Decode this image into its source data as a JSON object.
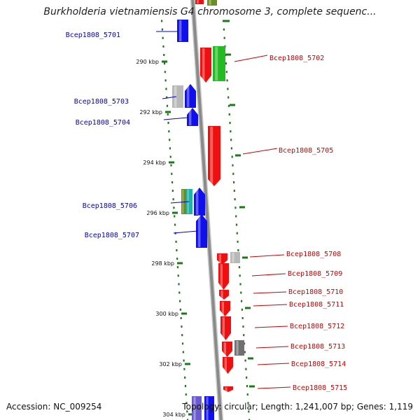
{
  "title": "Burkholderia vietnamiensis G4 chromosome 3, complete sequenc...",
  "footer": {
    "accession": "Accession: NC_009254",
    "stats": "Topology: circular; Length: 1,241,007 bp; Genes: 1,119"
  },
  "colors": {
    "forward_label": "#0000cc",
    "reverse_label": "#cc0000",
    "backbone": "#8a8a8a",
    "tick": "#1a7a1a",
    "blue_gene": "#1010ee",
    "red_gene": "#ee1010",
    "green_gene": "#22bb22",
    "gray_gene": "#b8b8b8",
    "dark_gray_gene": "#707070",
    "olive_gene": "#6b8e23",
    "teal_gene": "#20b2aa",
    "violet_gene": "#6a5acd"
  },
  "kbp_ticks": [
    "290 kbp",
    "292 kbp",
    "294 kbp",
    "296 kbp",
    "298 kbp",
    "300 kbp",
    "302 kbp",
    "304 kbp"
  ],
  "genes": {
    "forward": [
      {
        "id": "Bcep1808_5701",
        "label": "Bcep1808_5701",
        "color": "blue_gene"
      },
      {
        "id": "Bcep1808_5703",
        "label": "Bcep1808_5703",
        "color": "blue_gene"
      },
      {
        "id": "Bcep1808_5704",
        "label": "Bcep1808_5704",
        "color": "blue_gene"
      },
      {
        "id": "Bcep1808_5706",
        "label": "Bcep1808_5706",
        "color": "blue_gene"
      },
      {
        "id": "Bcep1808_5707",
        "label": "Bcep1808_5707",
        "color": "blue_gene"
      }
    ],
    "reverse": [
      {
        "id": "Bcep1808_5702",
        "label": "Bcep1808_5702",
        "color": "red_gene"
      },
      {
        "id": "Bcep1808_5705",
        "label": "Bcep1808_5705",
        "color": "red_gene"
      },
      {
        "id": "Bcep1808_5708",
        "label": "Bcep1808_5708",
        "color": "red_gene"
      },
      {
        "id": "Bcep1808_5709",
        "label": "Bcep1808_5709",
        "color": "red_gene"
      },
      {
        "id": "Bcep1808_5710",
        "label": "Bcep1808_5710",
        "color": "red_gene"
      },
      {
        "id": "Bcep1808_5711",
        "label": "Bcep1808_5711",
        "color": "red_gene"
      },
      {
        "id": "Bcep1808_5712",
        "label": "Bcep1808_5712",
        "color": "red_gene"
      },
      {
        "id": "Bcep1808_5713",
        "label": "Bcep1808_5713",
        "color": "red_gene"
      },
      {
        "id": "Bcep1808_5714",
        "label": "Bcep1808_5714",
        "color": "red_gene"
      },
      {
        "id": "Bcep1808_5715",
        "label": "Bcep1808_5715",
        "color": "red_gene"
      }
    ]
  }
}
